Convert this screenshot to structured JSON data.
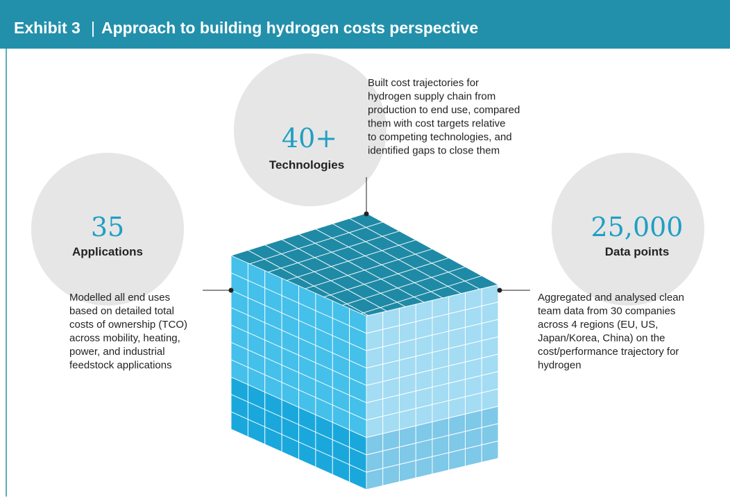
{
  "header": {
    "exhibit": "Exhibit 3",
    "title": "Approach to building hydrogen costs perspective"
  },
  "items": [
    {
      "number": "40+",
      "label": "Technologies",
      "description": [
        "Built cost trajectories for",
        "hydrogen supply chain from",
        "production to end use, compared",
        "them with cost targets relative",
        "to competing technologies, and",
        "identified gaps to close them"
      ]
    },
    {
      "number": "35",
      "label": "Applications",
      "description": [
        "Modelled all end uses",
        "based on detailed total",
        "costs of ownership (TCO)",
        "across mobility, heating,",
        "power, and industrial",
        "feedstock applications"
      ]
    },
    {
      "number": "25,000",
      "label": "Data points",
      "description": [
        "Aggregated and analysed clean",
        "team data from 30 companies",
        "across 4 regions (EU, US,",
        "Japan/Korea, China) on the",
        "cost/performance trajectory for",
        "hydrogen"
      ]
    }
  ]
}
